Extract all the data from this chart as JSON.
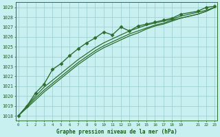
{
  "title": "Graphe pression niveau de la mer (hPa)",
  "bg_color": "#c8f0f0",
  "grid_color": "#99cccc",
  "line_color": "#2d6e2d",
  "text_color": "#1a5e1a",
  "xlim": [
    -0.3,
    23.3
  ],
  "ylim": [
    1017.5,
    1029.5
  ],
  "yticks": [
    1018,
    1019,
    1020,
    1021,
    1022,
    1023,
    1024,
    1025,
    1026,
    1027,
    1028,
    1029
  ],
  "xticks": [
    0,
    1,
    2,
    3,
    4,
    5,
    6,
    7,
    8,
    9,
    10,
    11,
    12,
    13,
    14,
    15,
    16,
    17,
    18,
    19,
    21,
    22,
    23
  ],
  "series": [
    {
      "x": [
        0,
        1,
        2,
        3,
        4,
        5,
        6,
        7,
        8,
        9,
        10,
        11,
        12,
        13,
        14,
        15,
        16,
        17,
        18,
        19,
        21,
        22,
        23
      ],
      "y": [
        1018.0,
        1019.0,
        1020.3,
        1021.2,
        1022.7,
        1023.3,
        1024.1,
        1024.8,
        1025.4,
        1025.9,
        1026.5,
        1026.2,
        1027.0,
        1026.6,
        1027.1,
        1027.3,
        1027.5,
        1027.7,
        1027.9,
        1028.3,
        1028.6,
        1029.0,
        1029.1
      ],
      "marker": "D",
      "markersize": 2.5,
      "linewidth": 1.0
    },
    {
      "x": [
        0,
        1,
        2,
        3,
        4,
        5,
        6,
        7,
        8,
        9,
        10,
        11,
        12,
        13,
        14,
        15,
        16,
        17,
        18,
        19,
        21,
        22,
        23
      ],
      "y": [
        1018.0,
        1019.0,
        1020.0,
        1020.9,
        1021.6,
        1022.3,
        1023.0,
        1023.7,
        1024.3,
        1024.9,
        1025.4,
        1025.8,
        1026.2,
        1026.6,
        1026.9,
        1027.2,
        1027.4,
        1027.6,
        1027.8,
        1028.1,
        1028.5,
        1028.7,
        1029.0
      ],
      "marker": null,
      "markersize": 0,
      "linewidth": 0.9
    },
    {
      "x": [
        0,
        1,
        2,
        3,
        4,
        5,
        6,
        7,
        8,
        9,
        10,
        11,
        12,
        13,
        14,
        15,
        16,
        17,
        18,
        19,
        21,
        22,
        23
      ],
      "y": [
        1018.0,
        1018.9,
        1019.8,
        1020.6,
        1021.3,
        1022.0,
        1022.7,
        1023.4,
        1024.0,
        1024.6,
        1025.1,
        1025.5,
        1025.9,
        1026.3,
        1026.6,
        1026.9,
        1027.2,
        1027.4,
        1027.7,
        1027.9,
        1028.3,
        1028.6,
        1029.0
      ],
      "marker": null,
      "markersize": 0,
      "linewidth": 0.9
    },
    {
      "x": [
        0,
        1,
        2,
        3,
        4,
        5,
        6,
        7,
        8,
        9,
        10,
        11,
        12,
        13,
        14,
        15,
        16,
        17,
        18,
        19,
        21,
        22,
        23
      ],
      "y": [
        1018.0,
        1018.8,
        1019.6,
        1020.4,
        1021.1,
        1021.8,
        1022.5,
        1023.2,
        1023.8,
        1024.4,
        1024.9,
        1025.3,
        1025.7,
        1026.1,
        1026.4,
        1026.8,
        1027.1,
        1027.3,
        1027.6,
        1027.9,
        1028.3,
        1028.6,
        1029.0
      ],
      "marker": null,
      "markersize": 0,
      "linewidth": 0.9
    }
  ],
  "figsize": [
    3.2,
    2.0
  ],
  "dpi": 100
}
